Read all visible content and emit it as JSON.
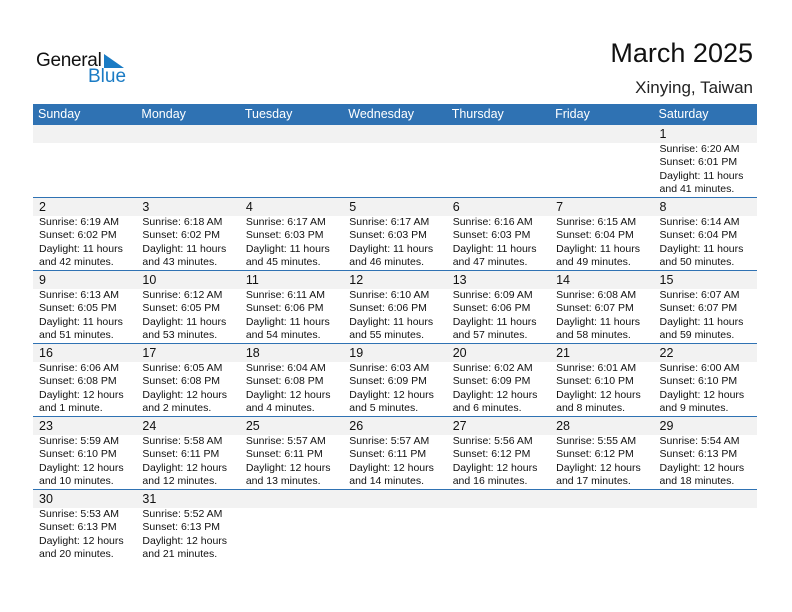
{
  "logo": {
    "general": "General",
    "blue": "Blue"
  },
  "title": "March 2025",
  "location": "Xinying, Taiwan",
  "colors": {
    "header": "#2f72b3",
    "logo_blue": "#1a7bc4",
    "date_strip": "#f2f2f2"
  },
  "weekdays": [
    "Sunday",
    "Monday",
    "Tuesday",
    "Wednesday",
    "Thursday",
    "Friday",
    "Saturday"
  ],
  "weeks": [
    [
      null,
      null,
      null,
      null,
      null,
      null,
      {
        "day": "1",
        "sunrise": "Sunrise: 6:20 AM",
        "sunset": "Sunset: 6:01 PM",
        "daylight": "Daylight: 11 hours",
        "minutes": "and 41 minutes."
      }
    ],
    [
      {
        "day": "2",
        "sunrise": "Sunrise: 6:19 AM",
        "sunset": "Sunset: 6:02 PM",
        "daylight": "Daylight: 11 hours",
        "minutes": "and 42 minutes."
      },
      {
        "day": "3",
        "sunrise": "Sunrise: 6:18 AM",
        "sunset": "Sunset: 6:02 PM",
        "daylight": "Daylight: 11 hours",
        "minutes": "and 43 minutes."
      },
      {
        "day": "4",
        "sunrise": "Sunrise: 6:17 AM",
        "sunset": "Sunset: 6:03 PM",
        "daylight": "Daylight: 11 hours",
        "minutes": "and 45 minutes."
      },
      {
        "day": "5",
        "sunrise": "Sunrise: 6:17 AM",
        "sunset": "Sunset: 6:03 PM",
        "daylight": "Daylight: 11 hours",
        "minutes": "and 46 minutes."
      },
      {
        "day": "6",
        "sunrise": "Sunrise: 6:16 AM",
        "sunset": "Sunset: 6:03 PM",
        "daylight": "Daylight: 11 hours",
        "minutes": "and 47 minutes."
      },
      {
        "day": "7",
        "sunrise": "Sunrise: 6:15 AM",
        "sunset": "Sunset: 6:04 PM",
        "daylight": "Daylight: 11 hours",
        "minutes": "and 49 minutes."
      },
      {
        "day": "8",
        "sunrise": "Sunrise: 6:14 AM",
        "sunset": "Sunset: 6:04 PM",
        "daylight": "Daylight: 11 hours",
        "minutes": "and 50 minutes."
      }
    ],
    [
      {
        "day": "9",
        "sunrise": "Sunrise: 6:13 AM",
        "sunset": "Sunset: 6:05 PM",
        "daylight": "Daylight: 11 hours",
        "minutes": "and 51 minutes."
      },
      {
        "day": "10",
        "sunrise": "Sunrise: 6:12 AM",
        "sunset": "Sunset: 6:05 PM",
        "daylight": "Daylight: 11 hours",
        "minutes": "and 53 minutes."
      },
      {
        "day": "11",
        "sunrise": "Sunrise: 6:11 AM",
        "sunset": "Sunset: 6:06 PM",
        "daylight": "Daylight: 11 hours",
        "minutes": "and 54 minutes."
      },
      {
        "day": "12",
        "sunrise": "Sunrise: 6:10 AM",
        "sunset": "Sunset: 6:06 PM",
        "daylight": "Daylight: 11 hours",
        "minutes": "and 55 minutes."
      },
      {
        "day": "13",
        "sunrise": "Sunrise: 6:09 AM",
        "sunset": "Sunset: 6:06 PM",
        "daylight": "Daylight: 11 hours",
        "minutes": "and 57 minutes."
      },
      {
        "day": "14",
        "sunrise": "Sunrise: 6:08 AM",
        "sunset": "Sunset: 6:07 PM",
        "daylight": "Daylight: 11 hours",
        "minutes": "and 58 minutes."
      },
      {
        "day": "15",
        "sunrise": "Sunrise: 6:07 AM",
        "sunset": "Sunset: 6:07 PM",
        "daylight": "Daylight: 11 hours",
        "minutes": "and 59 minutes."
      }
    ],
    [
      {
        "day": "16",
        "sunrise": "Sunrise: 6:06 AM",
        "sunset": "Sunset: 6:08 PM",
        "daylight": "Daylight: 12 hours",
        "minutes": "and 1 minute."
      },
      {
        "day": "17",
        "sunrise": "Sunrise: 6:05 AM",
        "sunset": "Sunset: 6:08 PM",
        "daylight": "Daylight: 12 hours",
        "minutes": "and 2 minutes."
      },
      {
        "day": "18",
        "sunrise": "Sunrise: 6:04 AM",
        "sunset": "Sunset: 6:08 PM",
        "daylight": "Daylight: 12 hours",
        "minutes": "and 4 minutes."
      },
      {
        "day": "19",
        "sunrise": "Sunrise: 6:03 AM",
        "sunset": "Sunset: 6:09 PM",
        "daylight": "Daylight: 12 hours",
        "minutes": "and 5 minutes."
      },
      {
        "day": "20",
        "sunrise": "Sunrise: 6:02 AM",
        "sunset": "Sunset: 6:09 PM",
        "daylight": "Daylight: 12 hours",
        "minutes": "and 6 minutes."
      },
      {
        "day": "21",
        "sunrise": "Sunrise: 6:01 AM",
        "sunset": "Sunset: 6:10 PM",
        "daylight": "Daylight: 12 hours",
        "minutes": "and 8 minutes."
      },
      {
        "day": "22",
        "sunrise": "Sunrise: 6:00 AM",
        "sunset": "Sunset: 6:10 PM",
        "daylight": "Daylight: 12 hours",
        "minutes": "and 9 minutes."
      }
    ],
    [
      {
        "day": "23",
        "sunrise": "Sunrise: 5:59 AM",
        "sunset": "Sunset: 6:10 PM",
        "daylight": "Daylight: 12 hours",
        "minutes": "and 10 minutes."
      },
      {
        "day": "24",
        "sunrise": "Sunrise: 5:58 AM",
        "sunset": "Sunset: 6:11 PM",
        "daylight": "Daylight: 12 hours",
        "minutes": "and 12 minutes."
      },
      {
        "day": "25",
        "sunrise": "Sunrise: 5:57 AM",
        "sunset": "Sunset: 6:11 PM",
        "daylight": "Daylight: 12 hours",
        "minutes": "and 13 minutes."
      },
      {
        "day": "26",
        "sunrise": "Sunrise: 5:57 AM",
        "sunset": "Sunset: 6:11 PM",
        "daylight": "Daylight: 12 hours",
        "minutes": "and 14 minutes."
      },
      {
        "day": "27",
        "sunrise": "Sunrise: 5:56 AM",
        "sunset": "Sunset: 6:12 PM",
        "daylight": "Daylight: 12 hours",
        "minutes": "and 16 minutes."
      },
      {
        "day": "28",
        "sunrise": "Sunrise: 5:55 AM",
        "sunset": "Sunset: 6:12 PM",
        "daylight": "Daylight: 12 hours",
        "minutes": "and 17 minutes."
      },
      {
        "day": "29",
        "sunrise": "Sunrise: 5:54 AM",
        "sunset": "Sunset: 6:13 PM",
        "daylight": "Daylight: 12 hours",
        "minutes": "and 18 minutes."
      }
    ],
    [
      {
        "day": "30",
        "sunrise": "Sunrise: 5:53 AM",
        "sunset": "Sunset: 6:13 PM",
        "daylight": "Daylight: 12 hours",
        "minutes": "and 20 minutes."
      },
      {
        "day": "31",
        "sunrise": "Sunrise: 5:52 AM",
        "sunset": "Sunset: 6:13 PM",
        "daylight": "Daylight: 12 hours",
        "minutes": "and 21 minutes."
      },
      null,
      null,
      null,
      null,
      null
    ]
  ]
}
